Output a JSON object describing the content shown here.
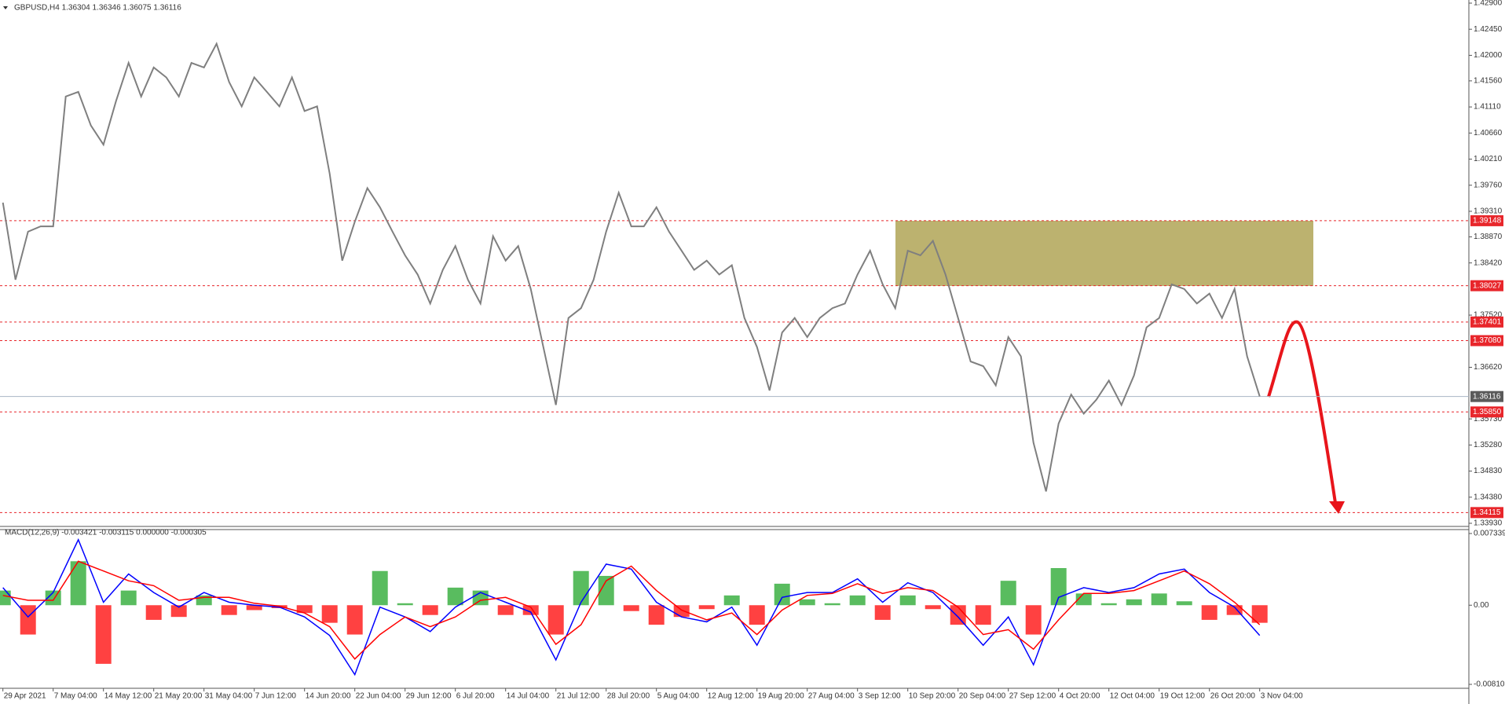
{
  "chart_data": [
    {
      "type": "line",
      "title": "GBPUSD,H4  1.36304 1.36346 1.36075 1.36116",
      "color": "#7f7f7f",
      "values": [
        1.3946,
        1.3813,
        1.3896,
        1.3905,
        1.3905,
        1.4129,
        1.4137,
        1.4079,
        1.4046,
        1.4121,
        1.4187,
        1.4129,
        1.4179,
        1.4162,
        1.4129,
        1.4187,
        1.4179,
        1.422,
        1.4154,
        1.4112,
        1.4162,
        1.4137,
        1.4112,
        1.4162,
        1.4104,
        1.4112,
        1.3996,
        1.3846,
        1.3913,
        1.3971,
        1.3938,
        1.3896,
        1.3855,
        1.3822,
        1.3772,
        1.383,
        1.3871,
        1.3813,
        1.3772,
        1.3888,
        1.3846,
        1.3871,
        1.3797,
        1.3697,
        1.3597,
        1.3747,
        1.3764,
        1.3813,
        1.3896,
        1.3963,
        1.3905,
        1.3905,
        1.3938,
        1.3896,
        1.3863,
        1.383,
        1.3846,
        1.3822,
        1.3838,
        1.3747,
        1.3697,
        1.3622,
        1.3722,
        1.3747,
        1.3714,
        1.3747,
        1.3764,
        1.3772,
        1.3822,
        1.3863,
        1.3805,
        1.3764,
        1.3863,
        1.3855,
        1.388,
        1.3822,
        1.3747,
        1.3672,
        1.3664,
        1.3631,
        1.3714,
        1.3681,
        1.3532,
        1.3448,
        1.3565,
        1.3615,
        1.3582,
        1.3606,
        1.3639,
        1.3597,
        1.3648,
        1.3731,
        1.3747,
        1.3805,
        1.3797,
        1.3772,
        1.3789,
        1.3747,
        1.3797,
        1.3681,
        1.3612
      ],
      "ylim": [
        1.3393,
        1.429
      ],
      "yticks": [
        {
          "value": 1.429,
          "label": "1.42900"
        },
        {
          "value": 1.4245,
          "label": "1.42450"
        },
        {
          "value": 1.42,
          "label": "1.42000"
        },
        {
          "value": 1.4156,
          "label": "1.41560"
        },
        {
          "value": 1.4111,
          "label": "1.41110"
        },
        {
          "value": 1.4066,
          "label": "1.40660"
        },
        {
          "value": 1.4021,
          "label": "1.40210"
        },
        {
          "value": 1.3976,
          "label": "1.39760"
        },
        {
          "value": 1.3931,
          "label": "1.39310"
        },
        {
          "value": 1.3887,
          "label": "1.38870"
        },
        {
          "value": 1.3842,
          "label": "1.38420"
        },
        {
          "value": 1.3752,
          "label": "1.37520"
        },
        {
          "value": 1.3662,
          "label": "1.36620"
        },
        {
          "value": 1.3573,
          "label": "1.35730"
        },
        {
          "value": 1.3528,
          "label": "1.35280"
        },
        {
          "value": 1.3483,
          "label": "1.34830"
        },
        {
          "value": 1.3438,
          "label": "1.34380"
        },
        {
          "value": 1.3393,
          "label": "1.33930"
        }
      ],
      "levels": [
        1.39148,
        1.38027,
        1.37401,
        {
          "value": 1.3708,
          "label": "1.37080"
        },
        {
          "value": 1.3585,
          "label": "1.35850"
        },
        1.34115
      ],
      "level_color": "#e8262b",
      "last_price": 1.36116,
      "last_color": "#a9b4c4"
    },
    {
      "type": "macd",
      "title": "MACD(12,26,9) -0.003421 -0.003115 0.000000 -0.000305",
      "series": [
        {
          "color": "#0000ff",
          "values": [
            0.0018,
            -0.0012,
            0.0013,
            0.0067,
            0.0003,
            0.0032,
            0.0013,
            -0.0002,
            0.0013,
            0.0003,
            0,
            -0.0002,
            -0.0012,
            -0.0031,
            -0.0071,
            -0.0002,
            -0.0012,
            -0.0027,
            -0.0002,
            0.0013,
            0.0003,
            -0.0007,
            -0.0056,
            0.0003,
            0.0042,
            0.0037,
            0.0003,
            -0.0012,
            -0.0017,
            -0.0002,
            -0.0041,
            0.0008,
            0.0013,
            0.0013,
            0.0027,
            0.0003,
            0.0023,
            0.0013,
            -0.0012,
            -0.0041,
            -0.0012,
            -0.0061,
            0.0008,
            0.0018,
            0.0013,
            0.0018,
            0.0032,
            0.0037,
            0.0013,
            -0.0002,
            -0.0031
          ]
        },
        {
          "color": "#ff0000",
          "values": [
            0.001,
            0.0005,
            0.0005,
            0.0045,
            0.0035,
            0.0025,
            0.002,
            0.0005,
            0.0008,
            0.0008,
            0.0002,
            -0.0001,
            -0.0008,
            -0.0022,
            -0.0055,
            -0.003,
            -0.0012,
            -0.0022,
            -0.0012,
            0.0005,
            0.0008,
            -0.0002,
            -0.004,
            -0.002,
            0.0025,
            0.004,
            0.0015,
            -0.0005,
            -0.0015,
            -0.0008,
            -0.003,
            -0.0005,
            0.001,
            0.0012,
            0.0022,
            0.0012,
            0.0018,
            0.0015,
            -0.0002,
            -0.003,
            -0.0025,
            -0.0045,
            -0.0015,
            0.0012,
            0.0012,
            0.0015,
            0.0025,
            0.0035,
            0.0022,
            0.0003,
            -0.002
          ]
        }
      ],
      "histogram": [
        0.0015,
        -0.003,
        0.0015,
        0.0045,
        -0.006,
        0.0015,
        -0.0015,
        -0.0012,
        0.001,
        -0.001,
        -0.0005,
        -0.0003,
        -0.0008,
        -0.0018,
        -0.003,
        0.0035,
        0.0002,
        -0.001,
        0.0018,
        0.0015,
        -0.001,
        -0.001,
        -0.003,
        0.0035,
        0.003,
        -0.0006,
        -0.002,
        -0.0012,
        -0.0004,
        0.001,
        -0.002,
        0.0022,
        0.0006,
        0.0002,
        0.001,
        -0.0015,
        0.001,
        -0.0004,
        -0.002,
        -0.002,
        0.0025,
        -0.003,
        0.0038,
        0.0012,
        0.0002,
        0.0006,
        0.0012,
        0.0004,
        -0.0015,
        -0.001,
        -0.0018
      ],
      "histogram_colors": [
        "#3cb043",
        "#ff2020"
      ],
      "ylim": [
        -0.008101,
        0.007339
      ],
      "yticks": [
        0.007339,
        {
          "value": 0,
          "label": "0.00"
        },
        -0.008101
      ],
      "xtick_labels": [
        "29 Apr 2021",
        "7 May 04:00",
        "14 May 12:00",
        "21 May 20:00",
        "31 May 04:00",
        "7 Jun 12:00",
        "14 Jun 20:00",
        "22 Jun 04:00",
        "29 Jun 12:00",
        "6 Jul 20:00",
        "14 Jul 04:00",
        "21 Jul 12:00",
        "28 Jul 20:00",
        "5 Aug 04:00",
        "12 Aug 12:00",
        "19 Aug 20:00",
        "27 Aug 04:00",
        "3 Sep 12:00",
        "10 Sep 20:00",
        "20 Sep 04:00",
        "27 Sep 12:00",
        "4 Oct 20:00",
        "12 Oct 04:00",
        "19 Oct 12:00",
        "26 Oct 20:00",
        "3 Nov 04:00"
      ]
    }
  ]
}
